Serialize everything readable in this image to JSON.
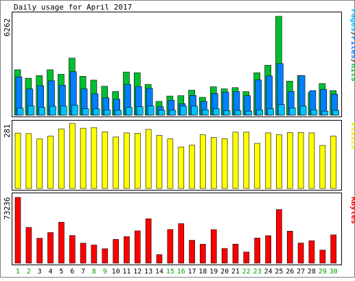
{
  "title": "Daily usage for April 2017",
  "colors": {
    "background": "#ffffff",
    "panel_border": "#000000",
    "hits": "#00c030",
    "files": "#0080ff",
    "pages": "#00c0ff",
    "visits": "#ffff00",
    "kbytes": "#ff0000",
    "day_weekday": "#000000",
    "day_weekend": "#00a000"
  },
  "chart_data": [
    {
      "type": "bar",
      "panel": "hits-files-pages",
      "max_label": "6262",
      "side_label": {
        "hits": "Hits",
        "files": "Files",
        "pages": "Pages",
        "sep": "/"
      },
      "ylim": [
        0,
        6262
      ],
      "series": [
        {
          "name": "Hits",
          "values": [
            2800,
            2280,
            2440,
            2800,
            2520,
            3520,
            2400,
            2160,
            1780,
            1460,
            2660,
            2620,
            1900,
            850,
            1180,
            1200,
            1540,
            1100,
            1750,
            1620,
            1700,
            1450,
            2620,
            3080,
            6100,
            2100,
            2450,
            1400,
            1950,
            1520
          ]
        },
        {
          "name": "Files",
          "values": [
            2360,
            1620,
            1820,
            2120,
            1850,
            2680,
            1620,
            1320,
            1070,
            990,
            1900,
            1760,
            1650,
            520,
            920,
            710,
            1220,
            850,
            1330,
            1420,
            1460,
            1200,
            2170,
            2420,
            3180,
            1460,
            2440,
            1520,
            1590,
            1300
          ]
        },
        {
          "name": "Pages",
          "values": [
            430,
            570,
            480,
            550,
            560,
            620,
            400,
            390,
            320,
            300,
            480,
            520,
            560,
            310,
            300,
            560,
            560,
            330,
            400,
            270,
            290,
            250,
            320,
            400,
            650,
            450,
            560,
            330,
            250,
            300
          ]
        }
      ]
    },
    {
      "type": "bar",
      "panel": "visits",
      "max_label": "281",
      "side_label": "Visits",
      "ylim": [
        0,
        281
      ],
      "series": [
        {
          "name": "Visits",
          "values": [
            239,
            237,
            214,
            226,
            257,
            281,
            260,
            263,
            245,
            222,
            240,
            238,
            255,
            229,
            214,
            179,
            187,
            232,
            220,
            215,
            243,
            243,
            195,
            240,
            232,
            241,
            242,
            240,
            186,
            226
          ]
        }
      ]
    },
    {
      "type": "bar",
      "panel": "kbytes",
      "max_label": "73236",
      "side_label": "KBytes",
      "ylim": [
        0,
        73236
      ],
      "series": [
        {
          "name": "KBytes",
          "values": [
            73236,
            39800,
            27800,
            34200,
            45600,
            30800,
            22300,
            20200,
            16100,
            26500,
            29600,
            36000,
            49400,
            9500,
            37500,
            44100,
            25500,
            21100,
            37400,
            16300,
            21200,
            12400,
            28000,
            30600,
            59700,
            35600,
            22400,
            25000,
            14600,
            31500
          ]
        }
      ]
    },
    {
      "type": "table",
      "panel": "day-axis",
      "days": [
        "1",
        "2",
        "3",
        "4",
        "5",
        "6",
        "7",
        "8",
        "9",
        "10",
        "11",
        "12",
        "13",
        "14",
        "15",
        "16",
        "17",
        "18",
        "19",
        "20",
        "21",
        "22",
        "23",
        "24",
        "25",
        "26",
        "27",
        "28",
        "29",
        "30"
      ],
      "weekend": [
        true,
        true,
        false,
        false,
        false,
        false,
        false,
        true,
        true,
        false,
        false,
        false,
        false,
        false,
        true,
        true,
        false,
        false,
        false,
        false,
        false,
        true,
        true,
        false,
        false,
        false,
        false,
        false,
        true,
        true
      ]
    }
  ]
}
